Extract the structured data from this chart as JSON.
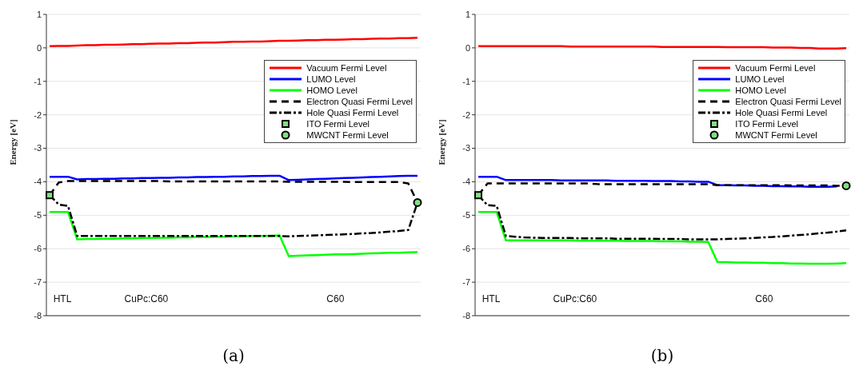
{
  "chart_data": [
    {
      "type": "line",
      "title": "(a)",
      "ylabel": "Energy [eV]",
      "ylim": [
        -8,
        1
      ],
      "yticks": [
        -8,
        -7,
        -6,
        -5,
        -4,
        -3,
        -2,
        -1,
        0,
        1
      ],
      "grid": "y",
      "legend": "top right",
      "tick_labels": "y",
      "annotations": [
        "HTL",
        "CuPc:C60",
        "C60"
      ],
      "categories": [
        null,
        null,
        null,
        null,
        null,
        null,
        null,
        null,
        null,
        null,
        null,
        null,
        null,
        null,
        null,
        null,
        null,
        null,
        null,
        null,
        null,
        null,
        null,
        null,
        null,
        null,
        null,
        null,
        null,
        null,
        null,
        null,
        null,
        null,
        null,
        null,
        null,
        null,
        null,
        null,
        null
      ],
      "series": [
        {
          "name": "Vacuum Fermi Level",
          "color": "#ff0000",
          "line_style": "solid",
          "values": [
            0.05,
            0.06,
            0.06,
            0.07,
            0.08,
            0.08,
            0.09,
            0.09,
            0.1,
            0.11,
            0.11,
            0.12,
            0.13,
            0.13,
            0.14,
            0.14,
            0.15,
            0.16,
            0.16,
            0.17,
            0.18,
            0.18,
            0.19,
            0.19,
            0.2,
            0.21,
            0.21,
            0.22,
            0.23,
            0.23,
            0.24,
            0.24,
            0.25,
            0.26,
            0.26,
            0.27,
            0.28,
            0.28,
            0.29,
            0.29,
            0.3
          ]
        },
        {
          "name": "LUMO Level",
          "color": "#0000ff",
          "line_style": "solid",
          "values": [
            -3.85,
            -3.85,
            -3.85,
            -3.93,
            -3.92,
            -3.92,
            -3.91,
            -3.91,
            -3.9,
            -3.9,
            -3.89,
            -3.89,
            -3.88,
            -3.88,
            -3.87,
            -3.87,
            -3.86,
            -3.86,
            -3.85,
            -3.85,
            -3.84,
            -3.84,
            -3.83,
            -3.83,
            -3.82,
            -3.82,
            -3.95,
            -3.94,
            -3.93,
            -3.92,
            -3.91,
            -3.9,
            -3.89,
            -3.88,
            -3.87,
            -3.86,
            -3.85,
            -3.84,
            -3.83,
            -3.82,
            -3.82
          ]
        },
        {
          "name": "HOMO Level",
          "color": "#00ff00",
          "line_style": "solid",
          "values": [
            -4.9,
            -4.9,
            -4.9,
            -5.72,
            -5.71,
            -5.71,
            -5.7,
            -5.7,
            -5.69,
            -5.69,
            -5.68,
            -5.68,
            -5.67,
            -5.67,
            -5.66,
            -5.66,
            -5.65,
            -5.65,
            -5.64,
            -5.64,
            -5.63,
            -5.63,
            -5.62,
            -5.62,
            -5.61,
            -5.6,
            -6.22,
            -6.21,
            -6.2,
            -6.19,
            -6.18,
            -6.17,
            -6.17,
            -6.16,
            -6.15,
            -6.14,
            -6.13,
            -6.12,
            -6.12,
            -6.11,
            -6.1
          ]
        },
        {
          "name": "Electron Quasi Fermi Level",
          "color": "#000000",
          "line_style": "dashed",
          "values": [
            -4.4,
            -4.02,
            -3.98,
            -3.98,
            -3.98,
            -3.98,
            -3.98,
            -3.98,
            -3.98,
            -3.98,
            -3.98,
            -3.98,
            -3.98,
            -3.99,
            -3.99,
            -3.99,
            -3.99,
            -3.99,
            -3.99,
            -3.99,
            -3.99,
            -3.99,
            -3.99,
            -3.99,
            -3.99,
            -3.99,
            -4.0,
            -4.0,
            -4.0,
            -4.0,
            -4.0,
            -4.0,
            -4.0,
            -4.01,
            -4.01,
            -4.01,
            -4.01,
            -4.01,
            -4.01,
            -4.05,
            -4.62
          ]
        },
        {
          "name": "Hole Quasi Fermi Level",
          "color": "#000000",
          "line_style": "dashdot",
          "values": [
            -4.4,
            -4.68,
            -4.72,
            -5.62,
            -5.62,
            -5.62,
            -5.62,
            -5.62,
            -5.62,
            -5.62,
            -5.62,
            -5.62,
            -5.62,
            -5.62,
            -5.62,
            -5.62,
            -5.62,
            -5.62,
            -5.62,
            -5.62,
            -5.62,
            -5.62,
            -5.62,
            -5.62,
            -5.62,
            -5.62,
            -5.63,
            -5.62,
            -5.61,
            -5.6,
            -5.59,
            -5.58,
            -5.57,
            -5.56,
            -5.54,
            -5.53,
            -5.51,
            -5.49,
            -5.47,
            -5.44,
            -4.62
          ]
        },
        {
          "name": "ITO Fermi Level",
          "type": "scatter",
          "marker": "square",
          "color": "#80e080",
          "values": [
            -4.4,
            null,
            null,
            null,
            null,
            null,
            null,
            null,
            null,
            null,
            null,
            null,
            null,
            null,
            null,
            null,
            null,
            null,
            null,
            null,
            null,
            null,
            null,
            null,
            null,
            null,
            null,
            null,
            null,
            null,
            null,
            null,
            null,
            null,
            null,
            null,
            null,
            null,
            null,
            null,
            null
          ]
        },
        {
          "name": "MWCNT Fermi Level",
          "type": "scatter",
          "marker": "circle",
          "color": "#80e080",
          "values": [
            null,
            null,
            null,
            null,
            null,
            null,
            null,
            null,
            null,
            null,
            null,
            null,
            null,
            null,
            null,
            null,
            null,
            null,
            null,
            null,
            null,
            null,
            null,
            null,
            null,
            null,
            null,
            null,
            null,
            null,
            null,
            null,
            null,
            null,
            null,
            null,
            null,
            null,
            null,
            null,
            -4.62
          ]
        }
      ]
    },
    {
      "type": "line",
      "title": "(b)",
      "ylabel": "Energy [eV]",
      "ylim": [
        -8,
        1
      ],
      "yticks": [
        -8,
        -7,
        -6,
        -5,
        -4,
        -3,
        -2,
        -1,
        0,
        1
      ],
      "grid": "y",
      "legend": "top right",
      "tick_labels": "y",
      "annotations": [
        "HTL",
        "CuPc:C60",
        "C60"
      ],
      "categories": [
        null,
        null,
        null,
        null,
        null,
        null,
        null,
        null,
        null,
        null,
        null,
        null,
        null,
        null,
        null,
        null,
        null,
        null,
        null,
        null,
        null,
        null,
        null,
        null,
        null,
        null,
        null,
        null,
        null,
        null,
        null,
        null,
        null,
        null,
        null,
        null,
        null,
        null,
        null,
        null,
        null
      ],
      "series": [
        {
          "name": "Vacuum Fermi Level",
          "color": "#ff0000",
          "line_style": "solid",
          "values": [
            0.05,
            0.05,
            0.05,
            0.05,
            0.05,
            0.05,
            0.05,
            0.05,
            0.05,
            0.05,
            0.04,
            0.04,
            0.04,
            0.04,
            0.04,
            0.04,
            0.04,
            0.04,
            0.04,
            0.04,
            0.03,
            0.03,
            0.03,
            0.03,
            0.03,
            0.03,
            0.03,
            0.02,
            0.02,
            0.02,
            0.02,
            0.02,
            0.01,
            0.01,
            0.01,
            0,
            0,
            -0.02,
            -0.02,
            -0.02,
            -0.01
          ]
        },
        {
          "name": "LUMO Level",
          "color": "#0000ff",
          "line_style": "solid",
          "values": [
            -3.85,
            -3.85,
            -3.85,
            -3.95,
            -3.95,
            -3.95,
            -3.95,
            -3.95,
            -3.95,
            -3.96,
            -3.96,
            -3.96,
            -3.96,
            -3.96,
            -3.96,
            -3.97,
            -3.97,
            -3.97,
            -3.97,
            -3.98,
            -3.98,
            -3.98,
            -3.99,
            -3.99,
            -4.0,
            -4.0,
            -4.1,
            -4.1,
            -4.11,
            -4.11,
            -4.12,
            -4.12,
            -4.13,
            -4.13,
            -4.14,
            -4.14,
            -4.15,
            -4.15,
            -4.15,
            -4.14,
            null
          ]
        },
        {
          "name": "HOMO Level",
          "color": "#00ff00",
          "line_style": "solid",
          "values": [
            -4.9,
            -4.9,
            -4.9,
            -5.75,
            -5.75,
            -5.75,
            -5.75,
            -5.75,
            -5.75,
            -5.75,
            -5.75,
            -5.76,
            -5.76,
            -5.76,
            -5.76,
            -5.76,
            -5.77,
            -5.77,
            -5.77,
            -5.77,
            -5.78,
            -5.78,
            -5.78,
            -5.79,
            -5.79,
            -5.8,
            -6.4,
            -6.4,
            -6.41,
            -6.41,
            -6.42,
            -6.42,
            -6.43,
            -6.43,
            -6.44,
            -6.44,
            -6.45,
            -6.45,
            -6.45,
            -6.44,
            -6.43
          ]
        },
        {
          "name": "Electron Quasi Fermi Level",
          "color": "#000000",
          "line_style": "dashed",
          "values": [
            -4.4,
            -4.05,
            -4.05,
            -4.05,
            -4.05,
            -4.05,
            -4.05,
            -4.05,
            -4.05,
            -4.05,
            -4.05,
            -4.05,
            -4.05,
            -4.07,
            -4.07,
            -4.07,
            -4.07,
            -4.07,
            -4.07,
            -4.07,
            -4.07,
            -4.07,
            -4.07,
            -4.07,
            -4.07,
            -4.07,
            -4.1,
            -4.1,
            -4.1,
            -4.1,
            -4.1,
            -4.1,
            -4.1,
            -4.1,
            -4.11,
            -4.11,
            -4.11,
            -4.11,
            -4.11,
            -4.12,
            -4.12
          ]
        },
        {
          "name": "Hole Quasi Fermi Level",
          "color": "#000000",
          "line_style": "dashdot",
          "values": [
            -4.4,
            -4.7,
            -4.72,
            -5.62,
            -5.64,
            -5.66,
            -5.67,
            -5.68,
            -5.68,
            -5.68,
            -5.68,
            -5.69,
            -5.69,
            -5.69,
            -5.69,
            -5.7,
            -5.7,
            -5.7,
            -5.7,
            -5.7,
            -5.71,
            -5.71,
            -5.71,
            -5.72,
            -5.72,
            -5.72,
            -5.72,
            -5.71,
            -5.7,
            -5.69,
            -5.68,
            -5.66,
            -5.65,
            -5.63,
            -5.61,
            -5.59,
            -5.57,
            -5.54,
            -5.52,
            -5.49,
            -5.45
          ]
        },
        {
          "name": "ITO Fermi Level",
          "type": "scatter",
          "marker": "square",
          "color": "#80e080",
          "values": [
            -4.4,
            null,
            null,
            null,
            null,
            null,
            null,
            null,
            null,
            null,
            null,
            null,
            null,
            null,
            null,
            null,
            null,
            null,
            null,
            null,
            null,
            null,
            null,
            null,
            null,
            null,
            null,
            null,
            null,
            null,
            null,
            null,
            null,
            null,
            null,
            null,
            null,
            null,
            null,
            null,
            null
          ]
        },
        {
          "name": "MWCNT Fermi Level",
          "type": "scatter",
          "marker": "circle",
          "color": "#80e080",
          "values": [
            null,
            null,
            null,
            null,
            null,
            null,
            null,
            null,
            null,
            null,
            null,
            null,
            null,
            null,
            null,
            null,
            null,
            null,
            null,
            null,
            null,
            null,
            null,
            null,
            null,
            null,
            null,
            null,
            null,
            null,
            null,
            null,
            null,
            null,
            null,
            null,
            null,
            null,
            null,
            null,
            -4.12
          ]
        }
      ]
    }
  ]
}
